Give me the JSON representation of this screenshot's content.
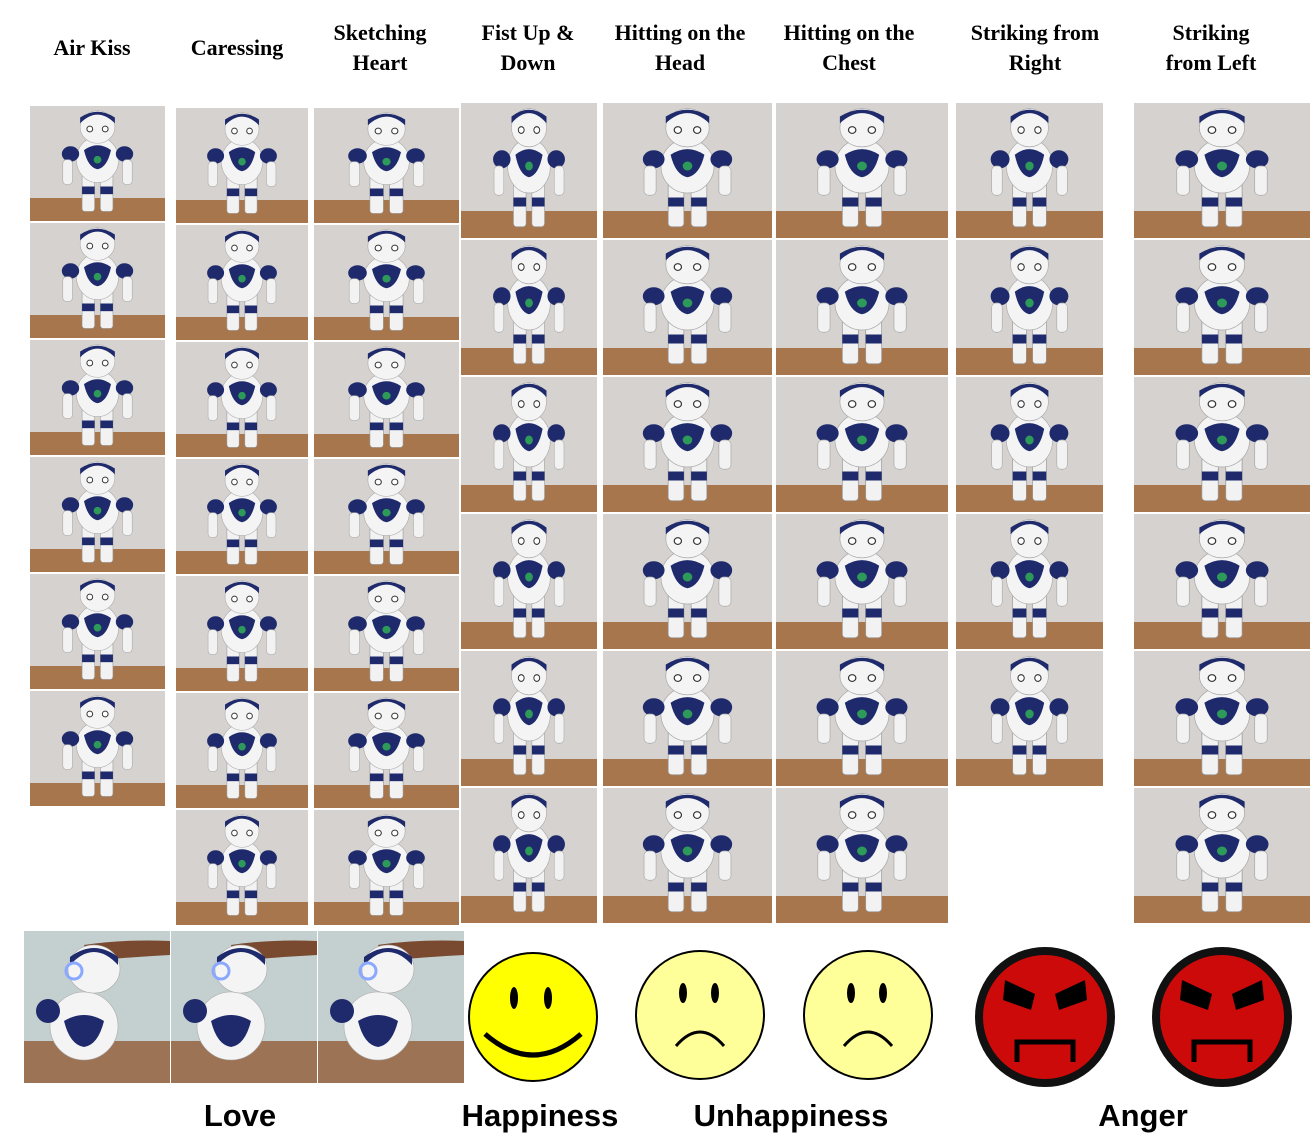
{
  "columns": [
    {
      "lines": [
        "Air Kiss"
      ]
    },
    {
      "lines": [
        "Caressing"
      ]
    },
    {
      "lines": [
        "Sketching",
        "Heart"
      ]
    },
    {
      "lines": [
        "Fist Up &",
        "Down"
      ]
    },
    {
      "lines": [
        "Hitting on the",
        "Head"
      ]
    },
    {
      "lines": [
        "Hitting on the",
        "Chest"
      ]
    },
    {
      "lines": [
        "Striking  from",
        "Right"
      ]
    },
    {
      "lines": [
        "Striking",
        "from Left"
      ]
    }
  ],
  "emotions": [
    "Love",
    "Happiness",
    "Unhappiness",
    "Anger"
  ]
}
